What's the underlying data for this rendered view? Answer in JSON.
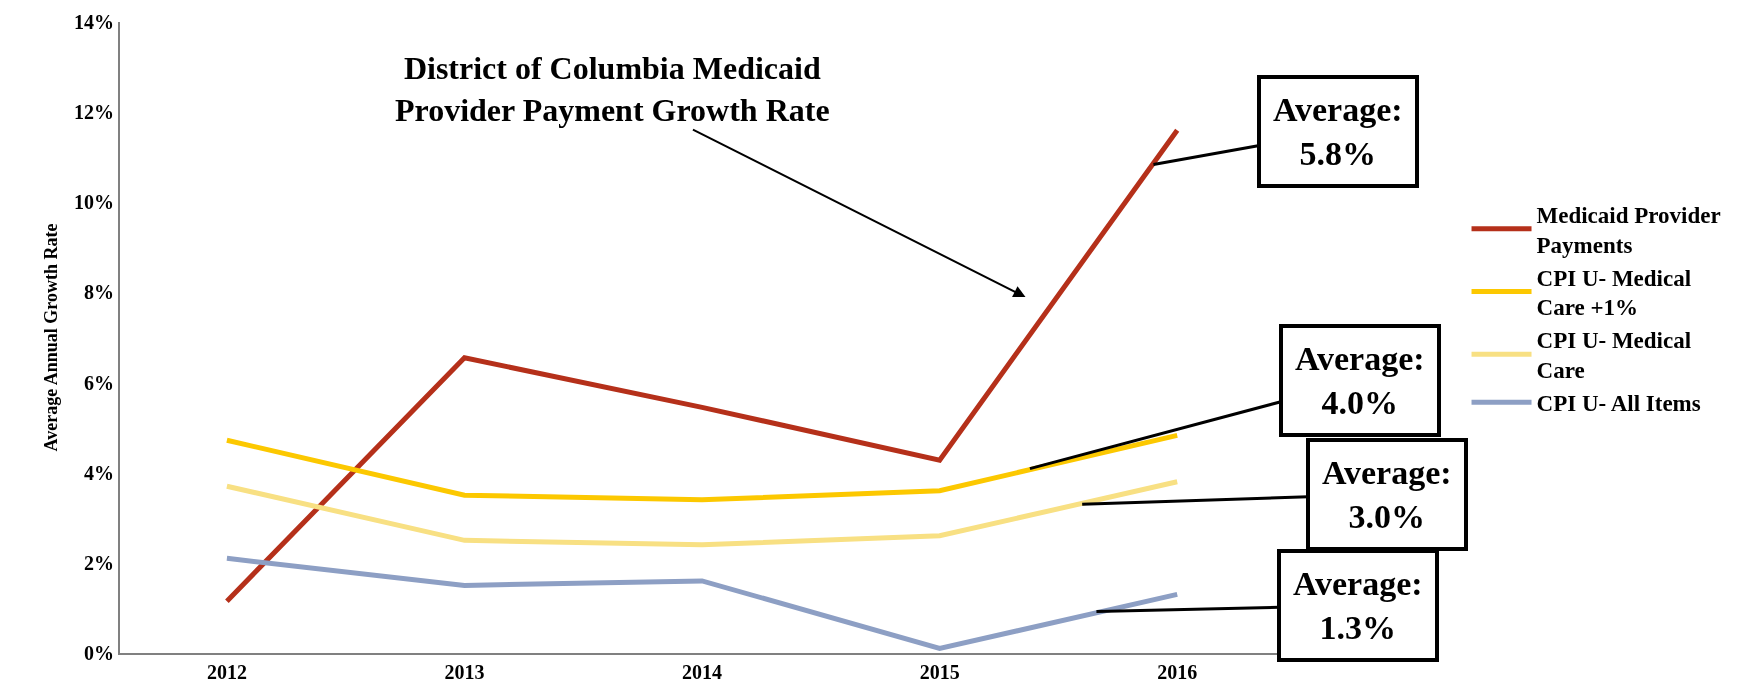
{
  "chart_data": {
    "type": "line",
    "ylabel": "Average Annual Growth Rate",
    "x": [
      2012,
      2013,
      2014,
      2015,
      2016
    ],
    "xlim": [
      2011.55,
      2016.5
    ],
    "xticks": [
      2012,
      2013,
      2014,
      2015,
      2016
    ],
    "ylim": [
      0,
      14
    ],
    "yticks": [
      {
        "value": 0,
        "label": "0%"
      },
      {
        "value": 2,
        "label": "2%"
      },
      {
        "value": 4,
        "label": "4%"
      },
      {
        "value": 6,
        "label": "6%"
      },
      {
        "value": 8,
        "label": "8%"
      },
      {
        "value": 10,
        "label": "10%"
      },
      {
        "value": 12,
        "label": "12%"
      },
      {
        "value": 14,
        "label": "14%"
      }
    ],
    "grid": false,
    "legend": "right",
    "marker": "none",
    "line_style": "solid",
    "series": [
      {
        "name": "Medicaid Provider Payments",
        "color": "#b5301a",
        "values": [
          1.15,
          6.55,
          5.45,
          4.28,
          11.6
        ]
      },
      {
        "name": "CPI U- Medical Care +1%",
        "color": "#fcc800",
        "values": [
          4.72,
          3.5,
          3.4,
          3.6,
          4.83
        ]
      },
      {
        "name": "CPI U- Medical Care",
        "color": "#f8e083",
        "values": [
          3.7,
          2.5,
          2.4,
          2.6,
          3.8
        ]
      },
      {
        "name": "CPI U- All Items",
        "color": "#8d9fc4",
        "values": [
          2.1,
          1.5,
          1.6,
          0.1,
          1.3
        ]
      }
    ],
    "annotations": [
      "District of Columbia Medicaid Provider Payment Growth Rate",
      {
        "text": "Average: 5.8%",
        "x": 2015.9,
        "y": 10.84
      },
      {
        "text": "Average: 4.0%",
        "x": 2015.38,
        "y": 4.09
      },
      {
        "text": "Average: 3.0%",
        "x": 2015.6,
        "y": 3.3
      },
      {
        "text": "Average: 1.3%",
        "x": 2015.66,
        "y": 0.92
      }
    ]
  }
}
